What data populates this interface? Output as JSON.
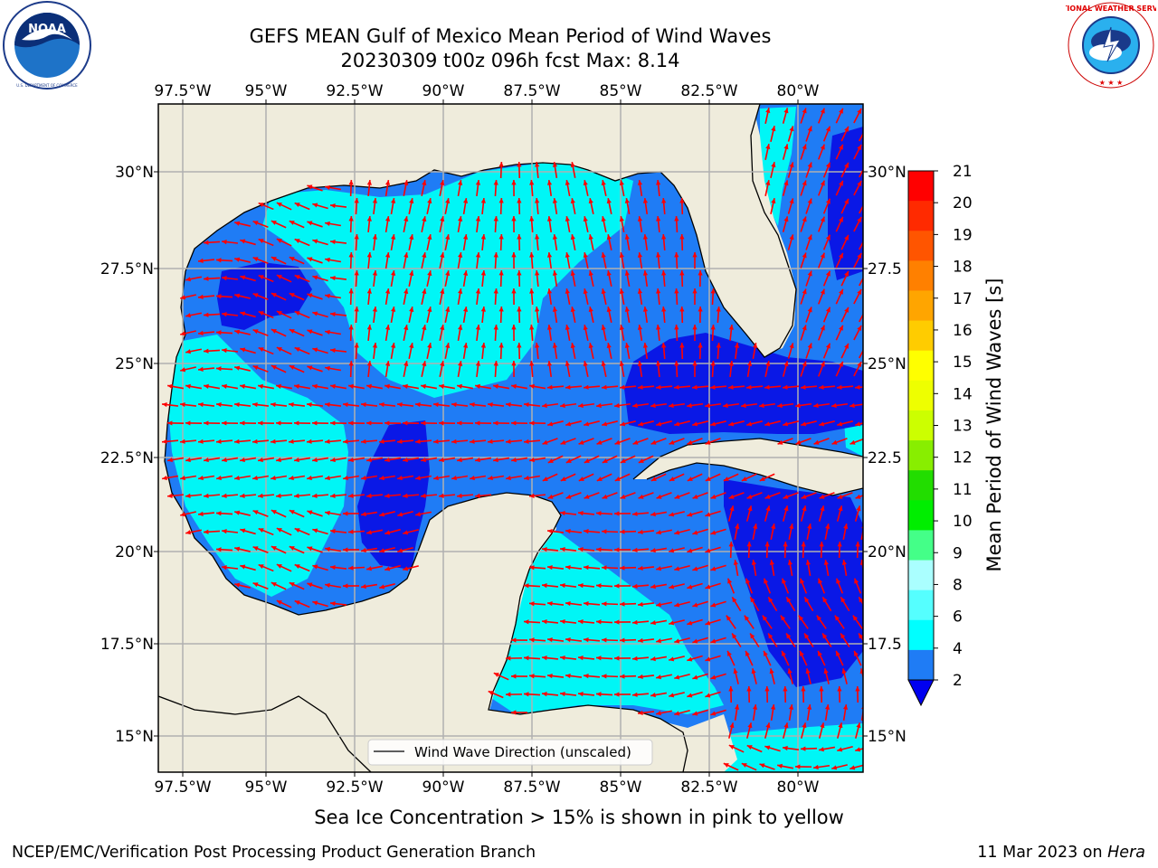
{
  "header": {
    "title_line1": "GEFS MEAN Gulf of Mexico Mean Period of Wind Waves",
    "title_line2": "20230309 t00z 096h fcst   Max: 8.14"
  },
  "logos": {
    "left": {
      "name": "noaa-logo",
      "text": "NOAA",
      "ring_text": "NATIONAL OCEANIC AND ATMOSPHERIC ADMINISTRATION · U.S. DEPARTMENT OF COMMERCE"
    },
    "right": {
      "name": "nws-logo",
      "ring_text": "NATIONAL WEATHER SERVICE"
    }
  },
  "map": {
    "lon_labels": [
      "97.5°W",
      "95°W",
      "92.5°W",
      "90°W",
      "87.5°W",
      "85°W",
      "82.5°W",
      "80°W"
    ],
    "lat_labels_left": [
      "30°N",
      "27.5°N",
      "25°N",
      "22.5°N",
      "20°N",
      "17.5°N",
      "15°N"
    ],
    "lat_labels_right": [
      "30°N",
      "27.5",
      "25°N",
      "22.5",
      "20°N",
      "17.5",
      "15°N"
    ],
    "legend_label": "Wind Wave Direction (unscaled)",
    "colors": {
      "land": "#efecdc",
      "ocean_2_4": "#1f7cf5",
      "ocean_lt2": "#0a18e6",
      "ocean_4_6": "#00f6f6",
      "arrow": "#ff0000",
      "grid": "#b0b0b0"
    }
  },
  "colorbar": {
    "label": "Mean Period of Wind Waves [s]",
    "ticks": [
      "21",
      "20",
      "19",
      "18",
      "17",
      "16",
      "15",
      "14",
      "13",
      "12",
      "11",
      "10",
      "9",
      "8",
      "6",
      "4",
      "2"
    ],
    "colors": [
      "#ff0000",
      "#ff2a00",
      "#ff5500",
      "#ff8000",
      "#ffa500",
      "#ffcc00",
      "#ffff00",
      "#eeff00",
      "#ccff00",
      "#88ee00",
      "#22dd00",
      "#00ee00",
      "#44ff88",
      "#aaffff",
      "#55ffff",
      "#00ffff",
      "#1f7cf5"
    ],
    "under_color": "#0000f0"
  },
  "footer": {
    "note": "Sea Ice Concentration > 15% is shown in pink to yellow",
    "left": "NCEP/EMC/Verification Post Processing Product Generation Branch",
    "right_date": "11 Mar 2023 on ",
    "right_machine": "Hera"
  }
}
